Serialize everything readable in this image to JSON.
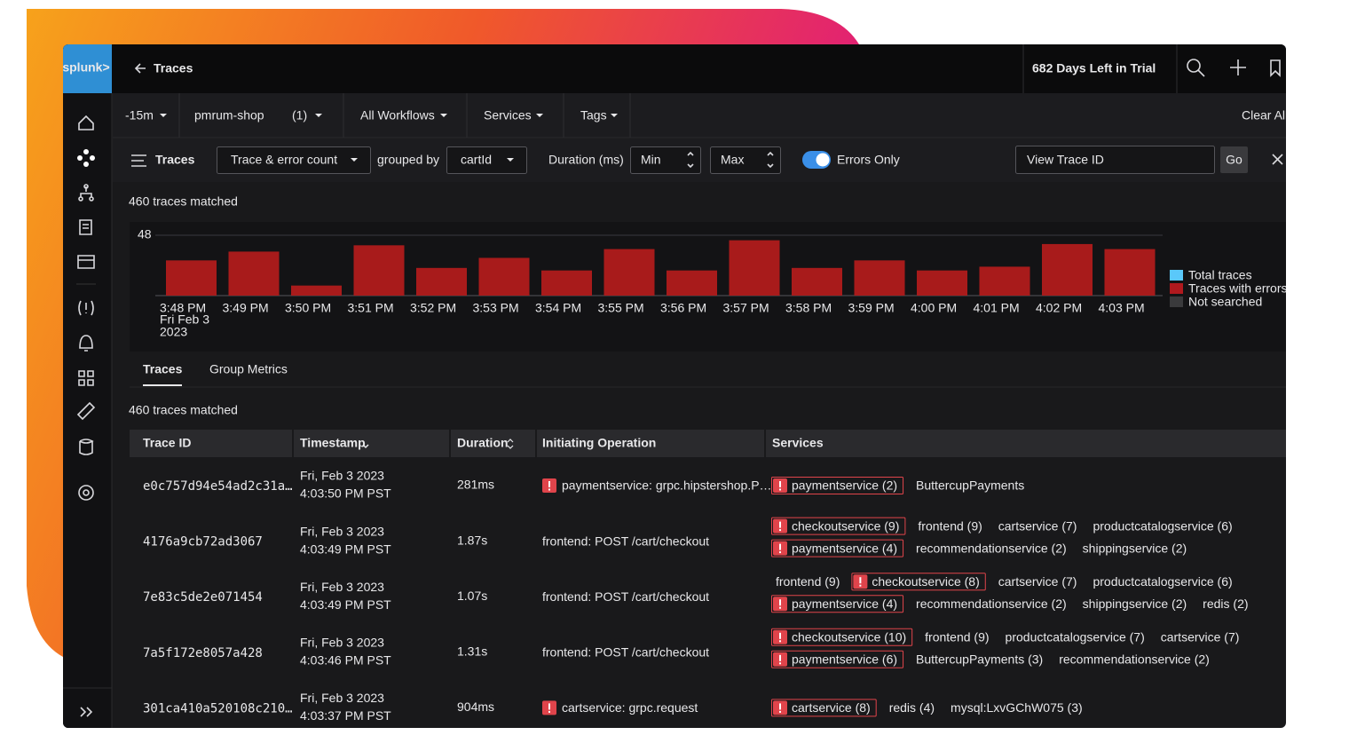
{
  "header": {
    "logo": "splunk>",
    "back": "Traces",
    "trial": "682 Days Left in Trial"
  },
  "filters": {
    "time": "-15m",
    "environment": "pmrum-shop",
    "environment_count": "(1)",
    "workflows": "All Workflows",
    "services": "Services",
    "tags": "Tags",
    "clear": "Clear All"
  },
  "toolbar": {
    "title": "Traces",
    "metric": "Trace & error count",
    "grouped_by": "grouped by",
    "group": "cartId",
    "duration": "Duration (ms)",
    "min": "Min",
    "max": "Max",
    "errors_only": "Errors Only",
    "trace_id_placeholder": "View Trace ID",
    "go": "Go"
  },
  "summary": "460 traces matched",
  "chart_data": {
    "type": "bar",
    "categories": [
      "3:48 PM",
      "3:49 PM",
      "3:50 PM",
      "3:51 PM",
      "3:52 PM",
      "3:53 PM",
      "3:54 PM",
      "3:55 PM",
      "3:56 PM",
      "3:57 PM",
      "3:58 PM",
      "3:59 PM",
      "4:00 PM",
      "4:01 PM",
      "4:02 PM",
      "4:03 PM"
    ],
    "first_category_date": [
      "Fri Feb 3",
      "2023"
    ],
    "values": [
      28,
      35,
      8,
      40,
      22,
      30,
      20,
      37,
      20,
      44,
      22,
      28,
      20,
      23,
      41,
      37
    ],
    "color": "#a81b1b",
    "ylim": [
      0,
      48
    ],
    "yticks": [
      48
    ],
    "grid": true,
    "legend": [
      {
        "name": "Total traces",
        "color": "#5ac8fa"
      },
      {
        "name": "Traces with errors",
        "color": "#b0191e"
      },
      {
        "name": "Not searched",
        "color": "#3a3a3c"
      }
    ]
  },
  "tabs": [
    "Traces",
    "Group Metrics"
  ],
  "table": {
    "summary": "460 traces matched",
    "columns": [
      "Trace ID",
      "Timestamp",
      "Duration",
      "Initiating Operation",
      "Services"
    ],
    "rows": [
      {
        "id": "e0c757d94e54ad2c31a…",
        "date": "Fri, Feb 3 2023",
        "time": "4:03:50 PM PST",
        "duration": "281ms",
        "operation": "paymentservice: grpc.hipstershop.P…",
        "operation_error": true,
        "services": [
          [
            {
              "name": "paymentservice (2)",
              "error": true
            },
            {
              "name": "ButtercupPayments",
              "error": false
            }
          ]
        ]
      },
      {
        "id": "4176a9cb72ad3067",
        "date": "Fri, Feb 3 2023",
        "time": "4:03:49 PM PST",
        "duration": "1.87s",
        "operation": "frontend: POST /cart/checkout",
        "operation_error": false,
        "services": [
          [
            {
              "name": "checkoutservice (9)",
              "error": true
            },
            {
              "name": "frontend (9)",
              "error": false
            },
            {
              "name": "cartservice (7)",
              "error": false
            },
            {
              "name": "productcatalogservice (6)",
              "error": false
            }
          ],
          [
            {
              "name": "paymentservice (4)",
              "error": true
            },
            {
              "name": "recommendationservice (2)",
              "error": false
            },
            {
              "name": "shippingservice (2)",
              "error": false
            }
          ]
        ]
      },
      {
        "id": "7e83c5de2e071454",
        "date": "Fri, Feb 3 2023",
        "time": "4:03:49 PM PST",
        "duration": "1.07s",
        "operation": "frontend: POST /cart/checkout",
        "operation_error": false,
        "services": [
          [
            {
              "name": "frontend (9)",
              "error": false
            },
            {
              "name": "checkoutservice (8)",
              "error": true
            },
            {
              "name": "cartservice (7)",
              "error": false
            },
            {
              "name": "productcatalogservice (6)",
              "error": false
            }
          ],
          [
            {
              "name": "paymentservice (4)",
              "error": true
            },
            {
              "name": "recommendationservice (2)",
              "error": false
            },
            {
              "name": "shippingservice (2)",
              "error": false
            },
            {
              "name": "redis (2)",
              "error": false
            }
          ]
        ]
      },
      {
        "id": "7a5f172e8057a428",
        "date": "Fri, Feb 3 2023",
        "time": "4:03:46 PM PST",
        "duration": "1.31s",
        "operation": "frontend: POST /cart/checkout",
        "operation_error": false,
        "services": [
          [
            {
              "name": "checkoutservice (10)",
              "error": true
            },
            {
              "name": "frontend (9)",
              "error": false
            },
            {
              "name": "productcatalogservice (7)",
              "error": false
            },
            {
              "name": "cartservice (7)",
              "error": false
            }
          ],
          [
            {
              "name": "paymentservice (6)",
              "error": true
            },
            {
              "name": "ButtercupPayments (3)",
              "error": false
            },
            {
              "name": "recommendationservice (2)",
              "error": false
            }
          ]
        ]
      },
      {
        "id": "301ca410a520108c210…",
        "date": "Fri, Feb 3 2023",
        "time": "4:03:37 PM PST",
        "duration": "904ms",
        "operation": "cartservice: grpc.request",
        "operation_error": true,
        "services": [
          [
            {
              "name": "cartservice (8)",
              "error": true
            },
            {
              "name": "redis (4)",
              "error": false
            },
            {
              "name": "mysql:LxvGChW075 (3)",
              "error": false
            }
          ]
        ]
      }
    ]
  }
}
